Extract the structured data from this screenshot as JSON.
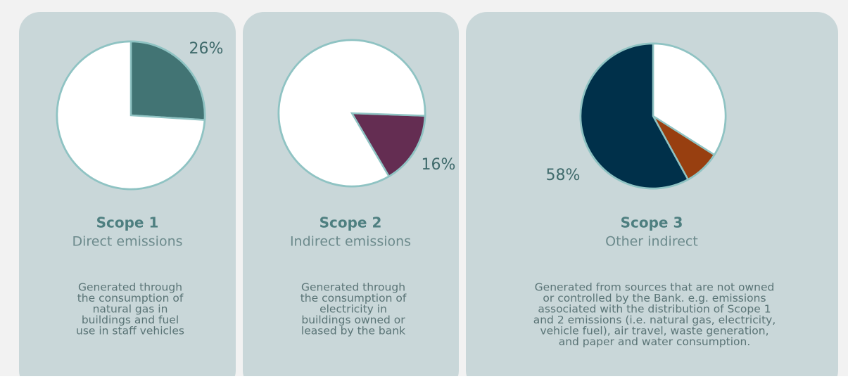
{
  "chart_data": [
    {
      "type": "pie",
      "title": "Scope 1",
      "subtitle": "Direct emissions",
      "description": [
        "Generated through",
        "the consumption of",
        "natural gas in",
        "buildings and fuel",
        "use in staff vehicles"
      ],
      "values": [
        26,
        74
      ],
      "value_labels": [
        "26%",
        null
      ],
      "colors": [
        "#427474",
        "#ffffff"
      ],
      "startangle": 0
    },
    {
      "type": "pie",
      "title": "Scope 2",
      "subtitle": "Indirect emissions",
      "description": [
        "Generated through",
        "the consumption of",
        "electricity in",
        "buildings owned or",
        "leased by the bank"
      ],
      "values": [
        16,
        84
      ],
      "value_labels": [
        "16%",
        null
      ],
      "colors": [
        "#642d52",
        "#ffffff"
      ],
      "startangle": 92
    },
    {
      "type": "pie",
      "title": "Scope 3",
      "subtitle": "Other indirect",
      "description": [
        "Generated from sources that are not owned",
        "or controlled by the Bank. e.g. emissions",
        "associated with the distribution of Scope 1",
        "and 2 emissions (i.e. natural gas, electricity,",
        "vehicle fuel), air travel, waste generation,",
        "and paper and water consumption."
      ],
      "values": [
        34,
        8,
        58
      ],
      "value_labels": [
        null,
        null,
        "58%"
      ],
      "colors": [
        "#ffffff",
        "#983f10",
        "#00304a"
      ],
      "startangle": 0
    }
  ]
}
